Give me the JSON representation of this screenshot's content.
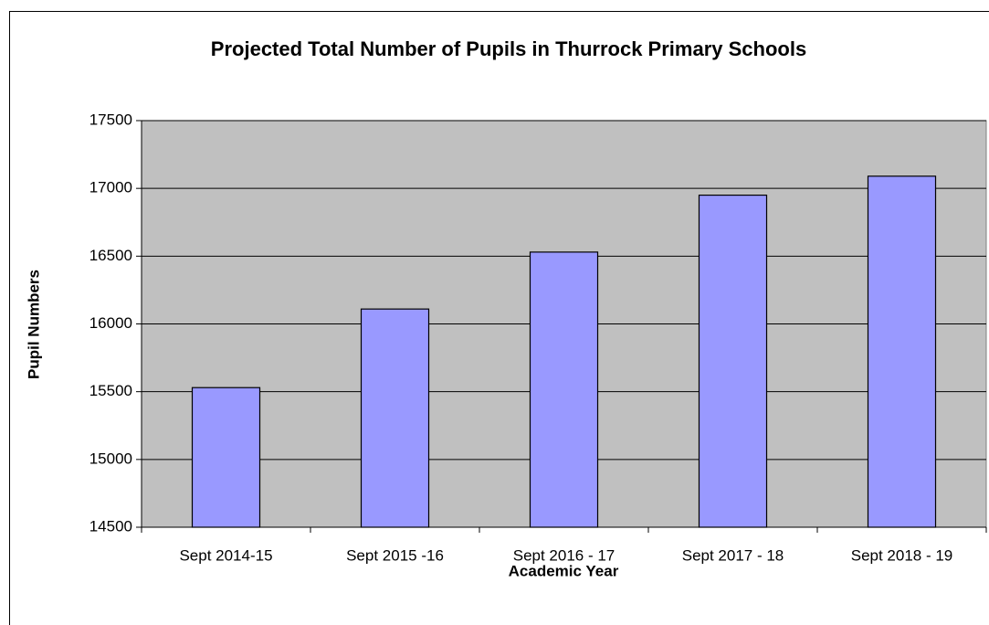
{
  "chart_data": {
    "type": "bar",
    "title": "Projected Total Number of Pupils in Thurrock Primary Schools",
    "x_label": "Academic Year",
    "y_label": "Pupil Numbers",
    "categories": [
      "Sept 2014-15",
      "Sept 2015 -16",
      "Sept 2016 - 17",
      "Sept 2017 - 18",
      "Sept 2018 - 19"
    ],
    "values": [
      15530,
      16110,
      16530,
      16950,
      17090
    ],
    "color": "#9999ff",
    "ylim": [
      14500,
      17500
    ],
    "yticks": [
      14500,
      15000,
      15500,
      16000,
      16500,
      17000,
      17500
    ],
    "grid": true
  }
}
